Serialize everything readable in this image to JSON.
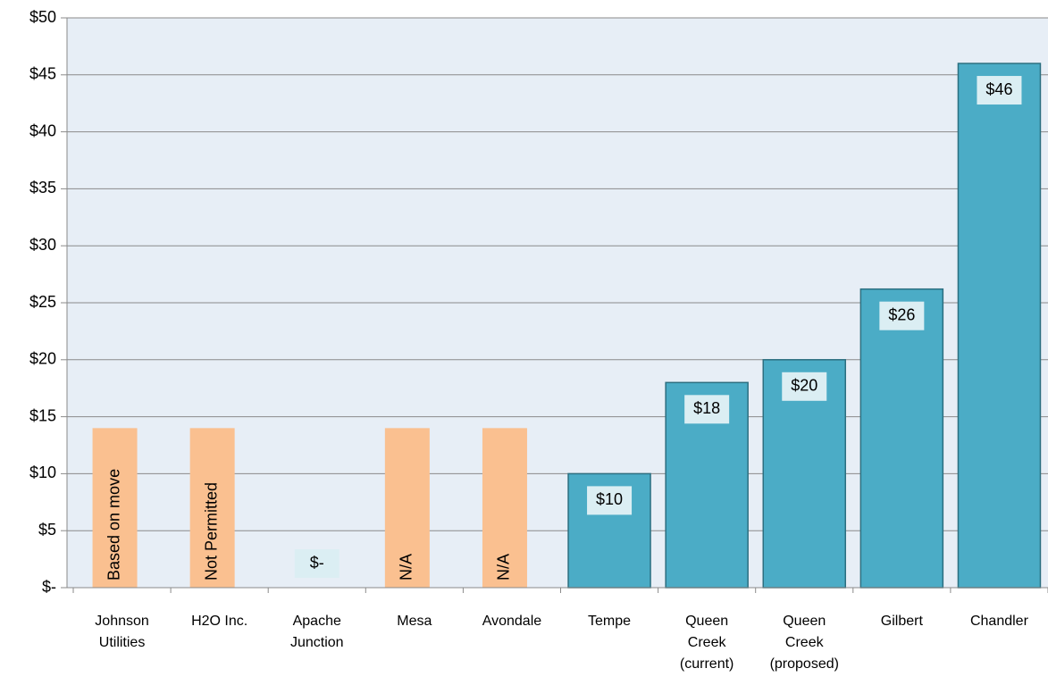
{
  "chart_data": {
    "type": "bar",
    "categories": [
      "Johnson Utilities",
      "H2O Inc.",
      "Apache Junction",
      "Mesa",
      "Avondale",
      "Tempe",
      "Queen Creek (current)",
      "Queen Creek (proposed)",
      "Gilbert",
      "Chandler"
    ],
    "series": [
      {
        "color": "#4bacc6",
        "values": [
          null,
          null,
          0,
          null,
          null,
          10,
          18,
          20,
          26.2,
          46
        ],
        "value_labels": [
          null,
          null,
          "$-",
          null,
          null,
          "$10",
          "$18",
          "$20",
          "$26",
          "$46"
        ]
      },
      {
        "color": "#fac090",
        "values": [
          14,
          14,
          null,
          14,
          14,
          null,
          null,
          null,
          null,
          null
        ],
        "value_labels": [
          "Based on move",
          "Not Permitted",
          null,
          "N/A",
          "N/A",
          null,
          null,
          null,
          null,
          null
        ]
      }
    ],
    "ylim": [
      0,
      50
    ],
    "yticks": [
      {
        "value": 0,
        "label": "$-"
      },
      {
        "value": 5,
        "label": "$5"
      },
      {
        "value": 10,
        "label": "$10"
      },
      {
        "value": 15,
        "label": "$15"
      },
      {
        "value": 20,
        "label": "$20"
      },
      {
        "value": 25,
        "label": "$25"
      },
      {
        "value": 30,
        "label": "$30"
      },
      {
        "value": 35,
        "label": "$35"
      },
      {
        "value": 40,
        "label": "$40"
      },
      {
        "value": 45,
        "label": "$45"
      },
      {
        "value": 50,
        "label": "$50"
      }
    ],
    "grid": true
  }
}
